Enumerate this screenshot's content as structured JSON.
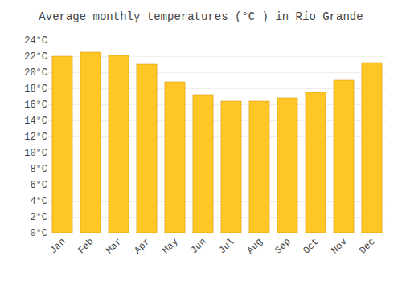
{
  "chart_data": {
    "type": "bar",
    "title": "Average monthly temperatures (°C ) in Río Grande",
    "categories": [
      "Jan",
      "Feb",
      "Mar",
      "Apr",
      "May",
      "Jun",
      "Jul",
      "Aug",
      "Sep",
      "Oct",
      "Nov",
      "Dec"
    ],
    "values": [
      22.0,
      22.5,
      22.1,
      21.0,
      18.8,
      17.2,
      16.4,
      16.4,
      16.8,
      17.5,
      19.0,
      21.2
    ],
    "color": "#FFC726",
    "ylim": [
      0,
      24
    ],
    "yticks": [
      {
        "value": 0,
        "label": "0°C"
      },
      {
        "value": 2,
        "label": "2°C"
      },
      {
        "value": 4,
        "label": "4°C"
      },
      {
        "value": 6,
        "label": "6°C"
      },
      {
        "value": 8,
        "label": "8°C"
      },
      {
        "value": 10,
        "label": "10°C"
      },
      {
        "value": 12,
        "label": "12°C"
      },
      {
        "value": 14,
        "label": "14°C"
      },
      {
        "value": 16,
        "label": "16°C"
      },
      {
        "value": 18,
        "label": "18°C"
      },
      {
        "value": 20,
        "label": "20°C"
      },
      {
        "value": 22,
        "label": "22°C"
      },
      {
        "value": 24,
        "label": "24°C"
      }
    ],
    "grid": true
  }
}
